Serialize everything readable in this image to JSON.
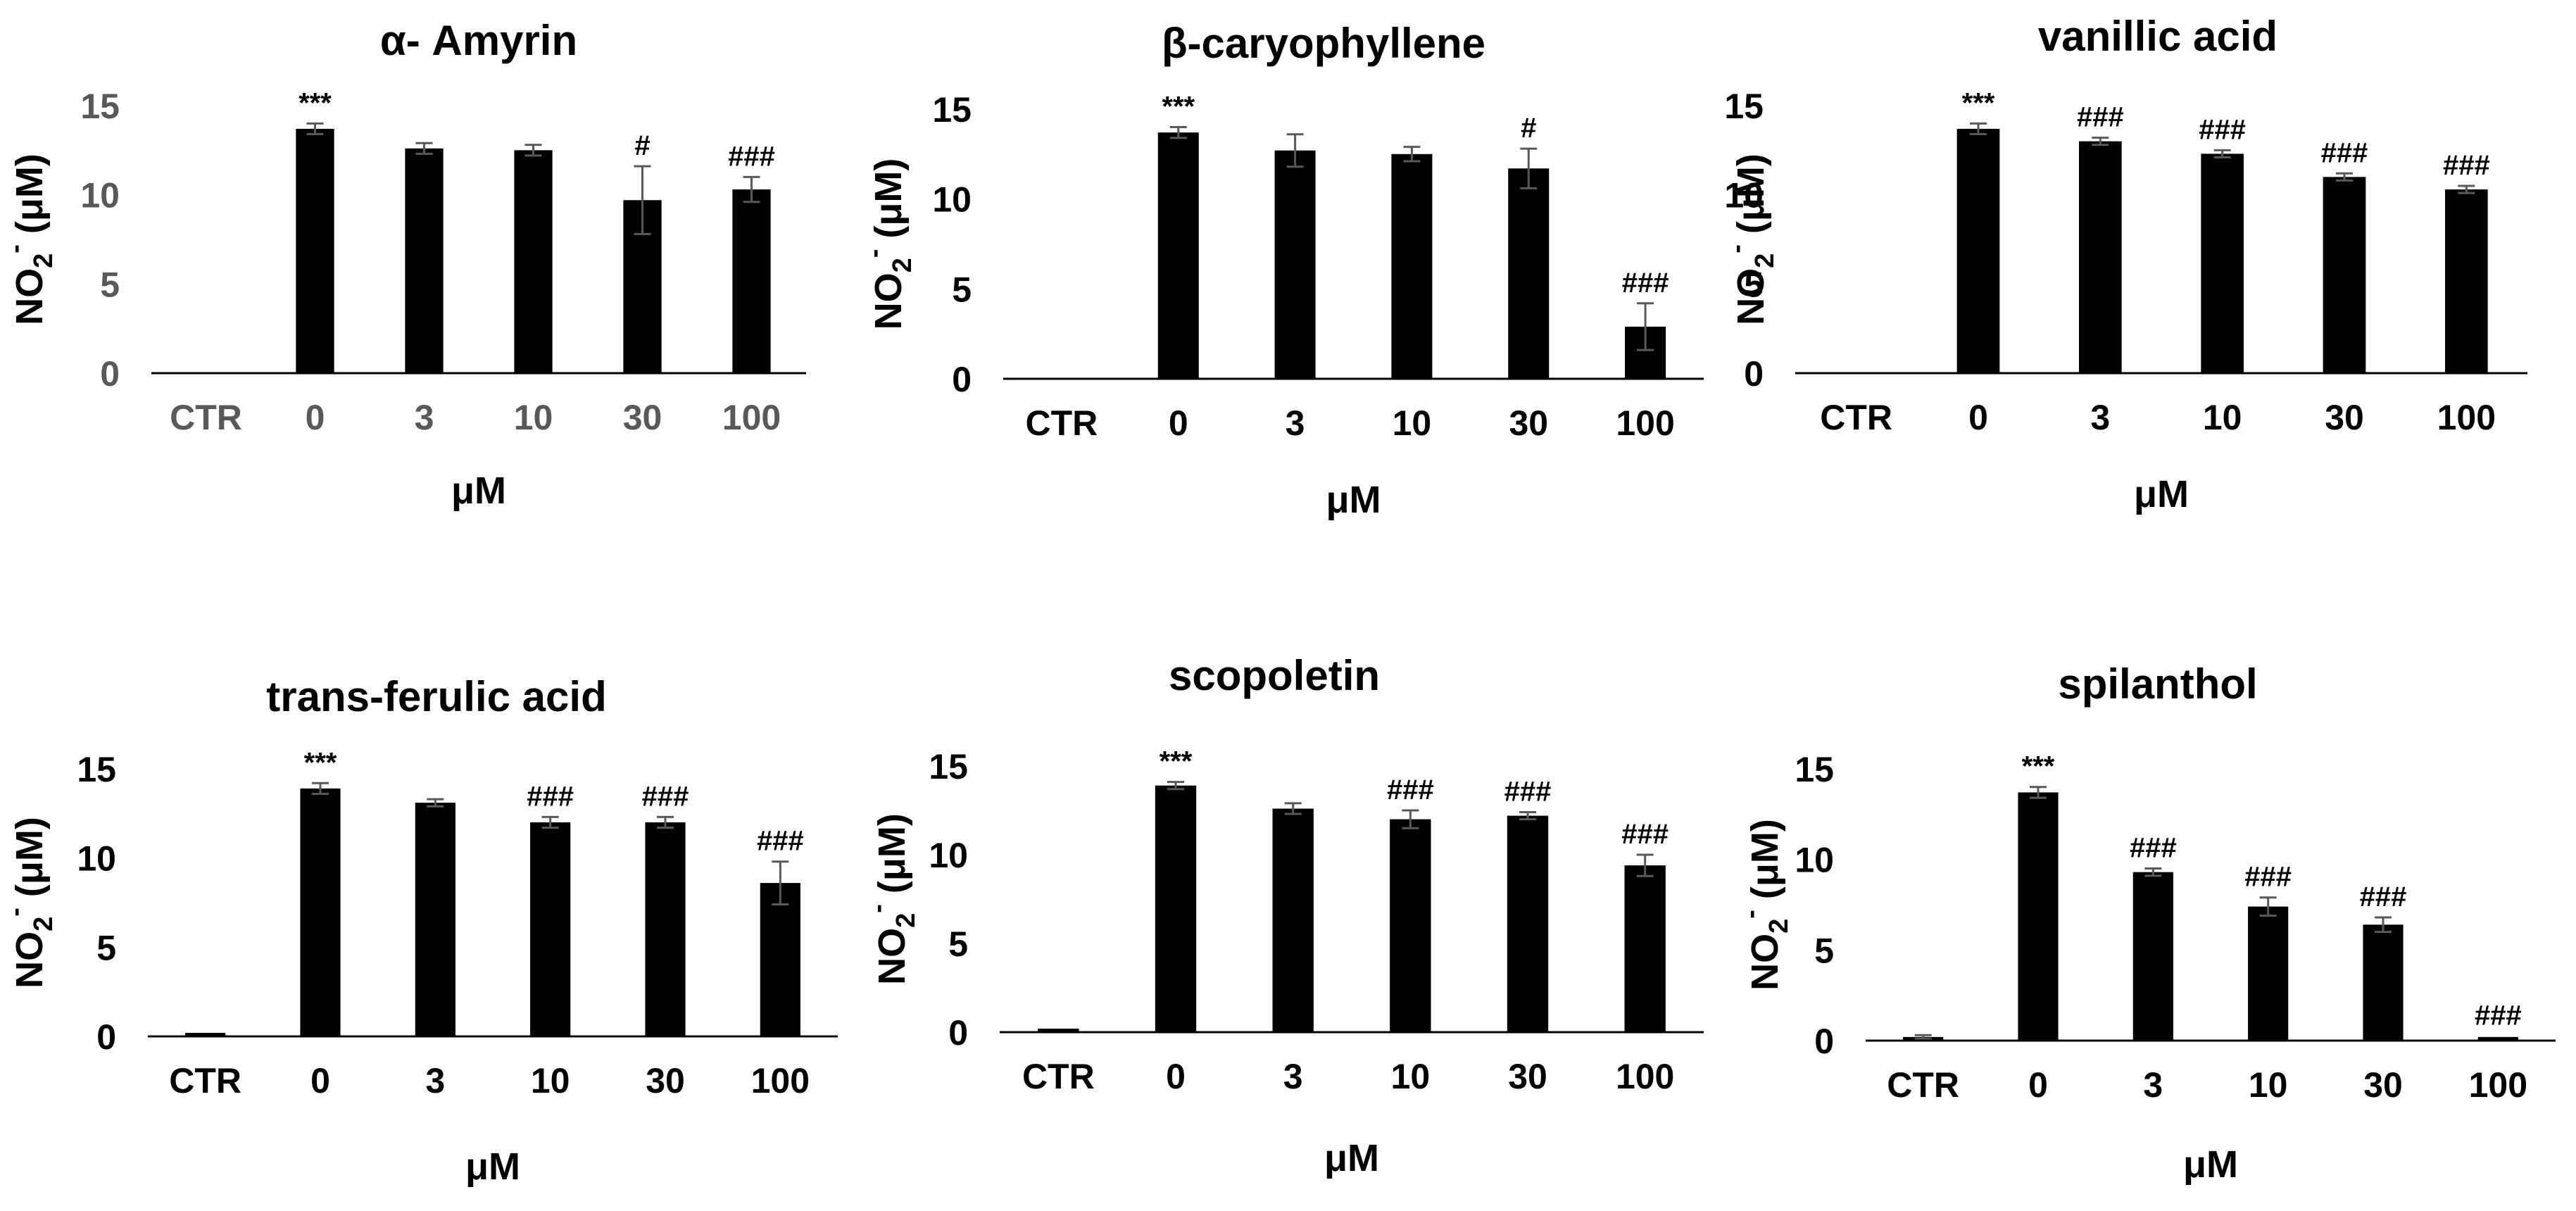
{
  "chart_data": [
    {
      "type": "bar",
      "title": "α- Amyrin",
      "xlabel": "μM",
      "ylabel_main": "NO",
      "ylabel_sub": "2",
      "ylabel_sup": "-",
      "ylabel_unit": " (μM)",
      "categories": [
        "CTR",
        "0",
        "3",
        "10",
        "30",
        "100"
      ],
      "values": [
        0.05,
        13.7,
        12.6,
        12.5,
        9.7,
        10.3
      ],
      "errors": [
        0.05,
        0.3,
        0.3,
        0.3,
        1.9,
        0.7
      ],
      "annotations": [
        "",
        "***",
        "",
        "",
        "#",
        "###"
      ],
      "yticks": [
        "0",
        "5",
        "10",
        "15"
      ],
      "ylim": [
        0,
        15
      ],
      "tick_color": "#595959",
      "bar_color": "#000000"
    },
    {
      "type": "bar",
      "title": "β-caryophyllene",
      "xlabel": "μM",
      "ylabel_main": "NO",
      "ylabel_sub": "2",
      "ylabel_sup": "-",
      "ylabel_unit": " (μM)",
      "categories": [
        "CTR",
        "0",
        "3",
        "10",
        "30",
        "100"
      ],
      "values": [
        0.05,
        13.7,
        12.7,
        12.5,
        11.7,
        2.9
      ],
      "errors": [
        0.05,
        0.3,
        0.9,
        0.4,
        1.1,
        1.3
      ],
      "annotations": [
        "",
        "***",
        "",
        "",
        "#",
        "###"
      ],
      "yticks": [
        "0",
        "5",
        "10",
        "15"
      ],
      "ylim": [
        0,
        15
      ],
      "tick_color": "#000000",
      "bar_color": "#000000"
    },
    {
      "type": "bar",
      "title": "vanillic acid",
      "xlabel": "μM",
      "ylabel_main": "NO",
      "ylabel_sub": "2",
      "ylabel_sup": "-",
      "ylabel_unit": " (μM)",
      "categories": [
        "CTR",
        "0",
        "3",
        "10",
        "30",
        "100"
      ],
      "values": [
        0.05,
        13.7,
        13.0,
        12.3,
        11.0,
        10.3
      ],
      "errors": [
        0.05,
        0.3,
        0.2,
        0.2,
        0.2,
        0.2
      ],
      "annotations": [
        "",
        "***",
        "###",
        "###",
        "###",
        "###"
      ],
      "yticks": [
        "0",
        "5",
        "10",
        "15"
      ],
      "ylim": [
        0,
        15
      ],
      "tick_color": "#000000",
      "bar_color": "#000000"
    },
    {
      "type": "bar",
      "title": "trans-ferulic acid",
      "xlabel": "μM",
      "ylabel_main": "NO",
      "ylabel_sub": "2",
      "ylabel_sup": "-",
      "ylabel_unit": " (μM)",
      "categories": [
        "CTR",
        "0",
        "3",
        "10",
        "30",
        "100"
      ],
      "values": [
        0.2,
        13.9,
        13.1,
        12.0,
        12.0,
        8.6
      ],
      "errors": [
        0.05,
        0.3,
        0.2,
        0.3,
        0.3,
        1.2
      ],
      "annotations": [
        "",
        "***",
        "",
        "###",
        "###",
        "###"
      ],
      "yticks": [
        "0",
        "5",
        "10",
        "15"
      ],
      "ylim": [
        0,
        15
      ],
      "tick_color": "#000000",
      "bar_color": "#000000"
    },
    {
      "type": "bar",
      "title": "scopoletin",
      "xlabel": "μM",
      "ylabel_main": "NO",
      "ylabel_sub": "2",
      "ylabel_sup": "-",
      "ylabel_unit": " (μM)",
      "categories": [
        "CTR",
        "0",
        "3",
        "10",
        "30",
        "100"
      ],
      "values": [
        0.2,
        13.9,
        12.6,
        12.0,
        12.2,
        9.4
      ],
      "errors": [
        0.05,
        0.2,
        0.3,
        0.5,
        0.2,
        0.6
      ],
      "annotations": [
        "",
        "***",
        "",
        "###",
        "###",
        "###"
      ],
      "yticks": [
        "0",
        "5",
        "10",
        "15"
      ],
      "ylim": [
        0,
        15
      ],
      "tick_color": "#000000",
      "bar_color": "#000000"
    },
    {
      "type": "bar",
      "title": "spilanthol",
      "xlabel": "μM",
      "ylabel_main": "NO",
      "ylabel_sub": "2",
      "ylabel_sup": "-",
      "ylabel_unit": " (μM)",
      "categories": [
        "CTR",
        "0",
        "3",
        "10",
        "30",
        "100"
      ],
      "values": [
        0.2,
        13.7,
        9.3,
        7.4,
        6.4,
        0.2
      ],
      "errors": [
        0.1,
        0.3,
        0.2,
        0.5,
        0.4,
        0.05
      ],
      "annotations": [
        "",
        "***",
        "###",
        "###",
        "###",
        "###"
      ],
      "yticks": [
        "0",
        "5",
        "10",
        "15"
      ],
      "ylim": [
        0,
        15
      ],
      "tick_color": "#000000",
      "bar_color": "#000000"
    }
  ]
}
